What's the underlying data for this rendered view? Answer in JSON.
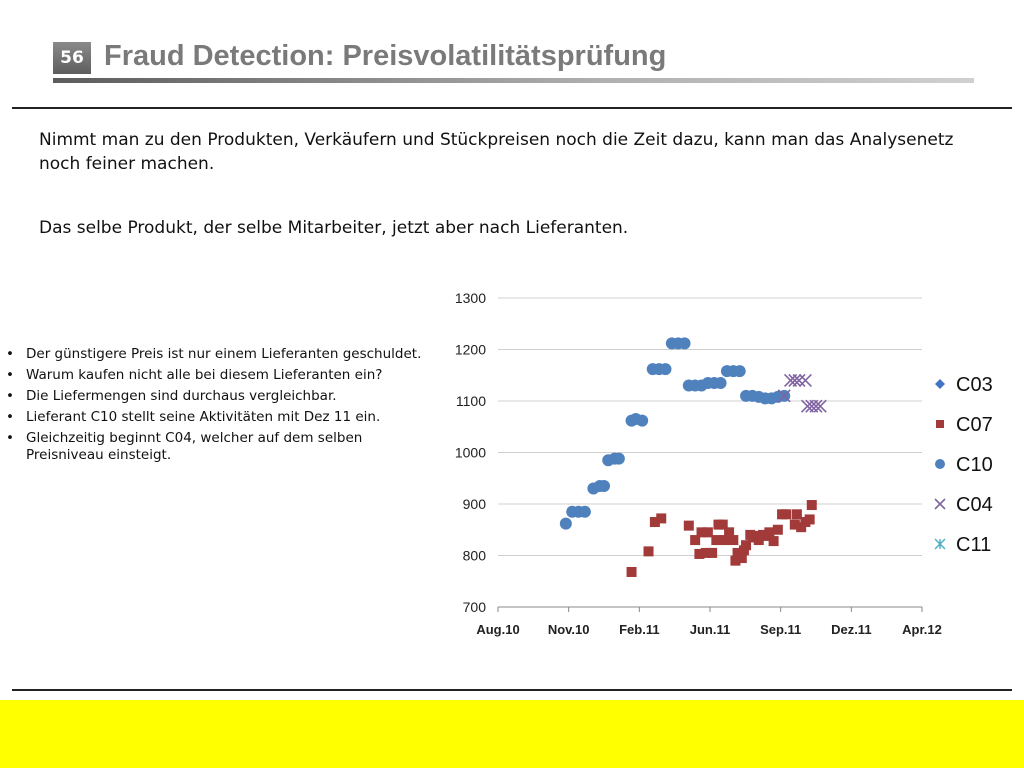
{
  "slide": {
    "number": "56",
    "title": "Fraud Detection: Preisvolatilitätsprüfung",
    "intro": [
      "Nimmt man zu den Produkten, Verkäufern und Stückpreisen noch die Zeit dazu, kann man das Analysenetz noch feiner machen.",
      "Das selbe Produkt, der selbe Mitarbeiter, jetzt aber nach Lieferanten."
    ],
    "bullets": [
      "Der günstigere Preis ist nur einem Lieferanten geschuldet.",
      "Warum kaufen nicht alle bei diesem Lieferanten ein?",
      "Die Liefermengen sind durchaus vergleichbar.",
      "Lieferant C10 stellt seine Aktivitäten mit Dez 11 ein.",
      "Gleichzeitig beginnt C04, welcher auf dem selben Preisniveau einsteigt."
    ],
    "accent_color": "#ffff00"
  },
  "chart_data": {
    "type": "scatter",
    "title": "",
    "xlabel": "",
    "ylabel": "",
    "x_tick_labels": [
      "Aug.10",
      "Nov.10",
      "Feb.11",
      "Jun.11",
      "Sep.11",
      "Dez.11",
      "Apr.12"
    ],
    "y_ticks": [
      700,
      800,
      900,
      1000,
      1100,
      1200,
      1300
    ],
    "ylim": [
      700,
      1300
    ],
    "x_unit": "months since Aug.10",
    "xlim": [
      0,
      20
    ],
    "grid": true,
    "legend": "right",
    "series": [
      {
        "name": "C03",
        "marker": "diamond",
        "color": "#4472c4",
        "points": []
      },
      {
        "name": "C07",
        "marker": "square",
        "color": "#a33a3a",
        "points": [
          [
            6.3,
            768
          ],
          [
            7.1,
            808
          ],
          [
            7.4,
            865
          ],
          [
            7.7,
            872
          ],
          [
            9.0,
            858
          ],
          [
            9.3,
            830
          ],
          [
            9.5,
            803
          ],
          [
            9.6,
            845
          ],
          [
            9.8,
            805
          ],
          [
            9.9,
            845
          ],
          [
            10.1,
            805
          ],
          [
            10.3,
            830
          ],
          [
            10.4,
            860
          ],
          [
            10.6,
            860
          ],
          [
            10.7,
            830
          ],
          [
            10.9,
            845
          ],
          [
            11.1,
            830
          ],
          [
            11.2,
            790
          ],
          [
            11.3,
            805
          ],
          [
            11.5,
            795
          ],
          [
            11.6,
            810
          ],
          [
            11.7,
            820
          ],
          [
            11.9,
            840
          ],
          [
            12.0,
            835
          ],
          [
            12.2,
            838
          ],
          [
            12.3,
            830
          ],
          [
            12.5,
            840
          ],
          [
            12.6,
            838
          ],
          [
            12.8,
            845
          ],
          [
            13.0,
            828
          ],
          [
            13.2,
            850
          ],
          [
            13.4,
            880
          ],
          [
            13.6,
            880
          ],
          [
            14.0,
            860
          ],
          [
            14.1,
            880
          ],
          [
            14.3,
            855
          ],
          [
            14.5,
            865
          ],
          [
            14.7,
            870
          ],
          [
            14.8,
            898
          ]
        ]
      },
      {
        "name": "C10",
        "marker": "circle",
        "color": "#4f81bd",
        "points": [
          [
            3.2,
            862
          ],
          [
            3.5,
            885
          ],
          [
            3.8,
            885
          ],
          [
            4.1,
            885
          ],
          [
            4.5,
            930
          ],
          [
            4.8,
            935
          ],
          [
            5.0,
            935
          ],
          [
            5.2,
            985
          ],
          [
            5.5,
            988
          ],
          [
            5.7,
            988
          ],
          [
            6.3,
            1062
          ],
          [
            6.5,
            1065
          ],
          [
            6.8,
            1062
          ],
          [
            7.3,
            1162
          ],
          [
            7.6,
            1162
          ],
          [
            7.9,
            1162
          ],
          [
            8.2,
            1212
          ],
          [
            8.5,
            1212
          ],
          [
            8.8,
            1212
          ],
          [
            9.0,
            1130
          ],
          [
            9.3,
            1130
          ],
          [
            9.6,
            1130
          ],
          [
            9.9,
            1135
          ],
          [
            10.2,
            1135
          ],
          [
            10.5,
            1135
          ],
          [
            10.8,
            1158
          ],
          [
            11.1,
            1158
          ],
          [
            11.4,
            1158
          ],
          [
            11.7,
            1110
          ],
          [
            12.0,
            1110
          ],
          [
            12.3,
            1108
          ],
          [
            12.6,
            1105
          ],
          [
            12.9,
            1105
          ],
          [
            13.2,
            1108
          ],
          [
            13.5,
            1110
          ]
        ]
      },
      {
        "name": "C04",
        "marker": "x",
        "color": "#8064a2",
        "points": [
          [
            13.5,
            1110
          ],
          [
            13.8,
            1140
          ],
          [
            14.0,
            1140
          ],
          [
            14.2,
            1140
          ],
          [
            14.5,
            1140
          ],
          [
            14.6,
            1090
          ],
          [
            14.8,
            1090
          ],
          [
            15.0,
            1090
          ],
          [
            15.2,
            1090
          ]
        ]
      },
      {
        "name": "C11",
        "marker": "star",
        "color": "#4bacc6",
        "points": []
      }
    ]
  }
}
